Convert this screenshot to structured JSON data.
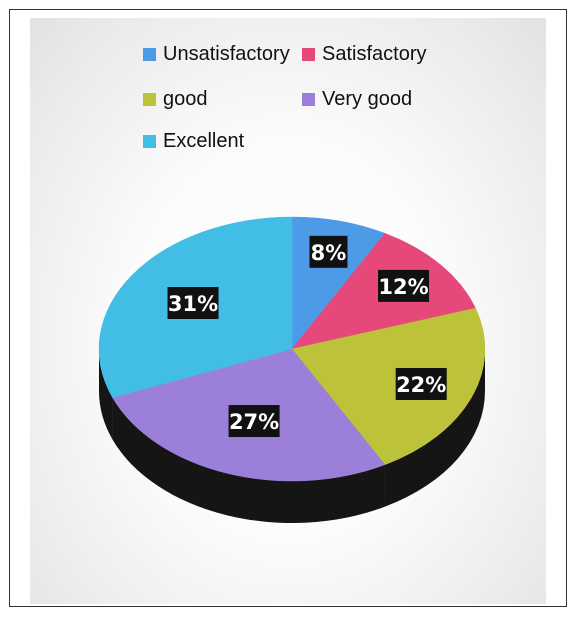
{
  "chart_data": {
    "type": "pie",
    "legend_position": "top",
    "slices": [
      {
        "label": "Unsatisfactory",
        "value": 8,
        "value_label": "8%",
        "color": "#4d9be6",
        "side_color": "#2f6aa8"
      },
      {
        "label": "Satisfactory",
        "value": 12,
        "value_label": "12%",
        "color": "#e6487a",
        "side_color": "#a8284f"
      },
      {
        "label": "good",
        "value": 22,
        "value_label": "22%",
        "color": "#bcc23a",
        "side_color": "#7c8020"
      },
      {
        "label": "Very good",
        "value": 27,
        "value_label": "27%",
        "color": "#9c7fd9",
        "side_color": "#5d4a8f"
      },
      {
        "label": "Excellent",
        "value": 31,
        "value_label": "31%",
        "color": "#41bde6",
        "side_color": "#2a7fa0"
      }
    ]
  }
}
